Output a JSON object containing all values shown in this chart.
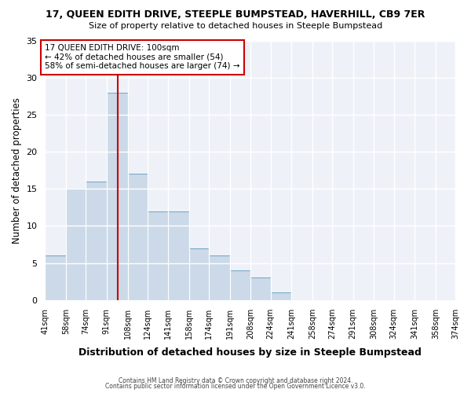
{
  "title": "17, QUEEN EDITH DRIVE, STEEPLE BUMPSTEAD, HAVERHILL, CB9 7ER",
  "subtitle": "Size of property relative to detached houses in Steeple Bumpstead",
  "xlabel": "Distribution of detached houses by size in Steeple Bumpstead",
  "ylabel": "Number of detached properties",
  "bins": [
    41,
    58,
    74,
    91,
    108,
    124,
    141,
    158,
    174,
    191,
    208,
    224,
    241,
    258,
    274,
    291,
    308,
    324,
    341,
    358,
    374
  ],
  "counts": [
    6,
    15,
    16,
    28,
    17,
    12,
    12,
    7,
    6,
    4,
    3,
    1,
    0,
    0,
    0,
    0,
    0,
    0,
    0,
    0
  ],
  "bar_color": "#ccd9e8",
  "bar_edge_color": "#7aaac8",
  "vline_x": 100,
  "vline_color": "#cc0000",
  "annotation_text": "17 QUEEN EDITH DRIVE: 100sqm\n← 42% of detached houses are smaller (54)\n58% of semi-detached houses are larger (74) →",
  "annotation_box_color": "#ffffff",
  "annotation_box_edge": "#cc0000",
  "ylim": [
    0,
    35
  ],
  "yticks": [
    0,
    5,
    10,
    15,
    20,
    25,
    30,
    35
  ],
  "footer1": "Contains HM Land Registry data © Crown copyright and database right 2024.",
  "footer2": "Contains public sector information licensed under the Open Government Licence v3.0.",
  "tick_labels": [
    "41sqm",
    "58sqm",
    "74sqm",
    "91sqm",
    "108sqm",
    "124sqm",
    "141sqm",
    "158sqm",
    "174sqm",
    "191sqm",
    "208sqm",
    "224sqm",
    "241sqm",
    "258sqm",
    "274sqm",
    "291sqm",
    "308sqm",
    "324sqm",
    "341sqm",
    "358sqm",
    "374sqm"
  ],
  "background_color": "#ffffff",
  "plot_bg_color": "#eef2f8",
  "grid_color": "#ffffff"
}
